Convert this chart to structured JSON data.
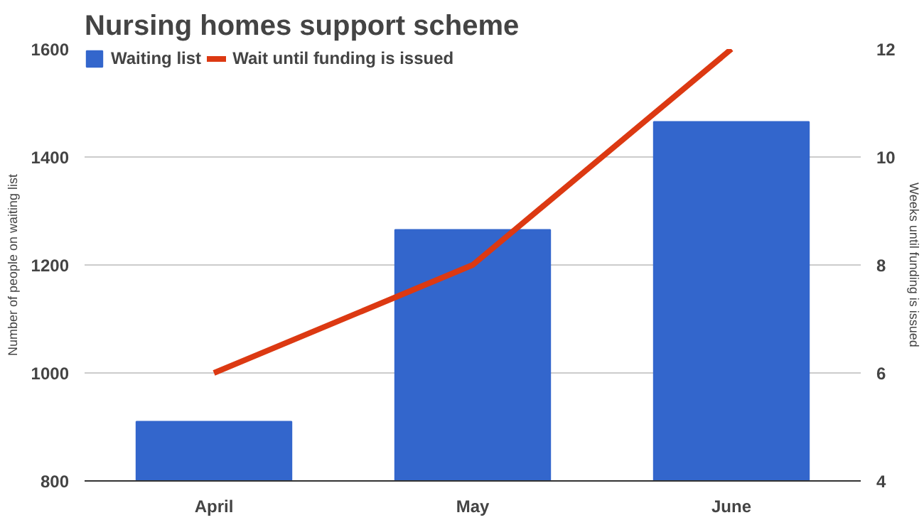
{
  "chart_data": {
    "type": "bar",
    "title": "Nursing homes support scheme",
    "categories": [
      "April",
      "May",
      "June"
    ],
    "ylabel": "Number of people on waiting list",
    "y2label": "Weeks until funding is issued",
    "series": [
      {
        "name": "Waiting list",
        "color": "#3366cc",
        "values": [
          910,
          1265,
          1465
        ]
      },
      {
        "name": "Wait until funding is issued",
        "color": "#dc3912",
        "type": "line",
        "axis": "y2",
        "values": [
          6,
          8,
          12
        ]
      }
    ],
    "ylim": [
      800,
      1600
    ],
    "yticks": [
      800,
      1000,
      1200,
      1400,
      1600
    ],
    "y2lim": [
      4,
      12
    ],
    "y2ticks": [
      4,
      6,
      8,
      10,
      12
    ],
    "grid": "y",
    "legend": "top left"
  }
}
